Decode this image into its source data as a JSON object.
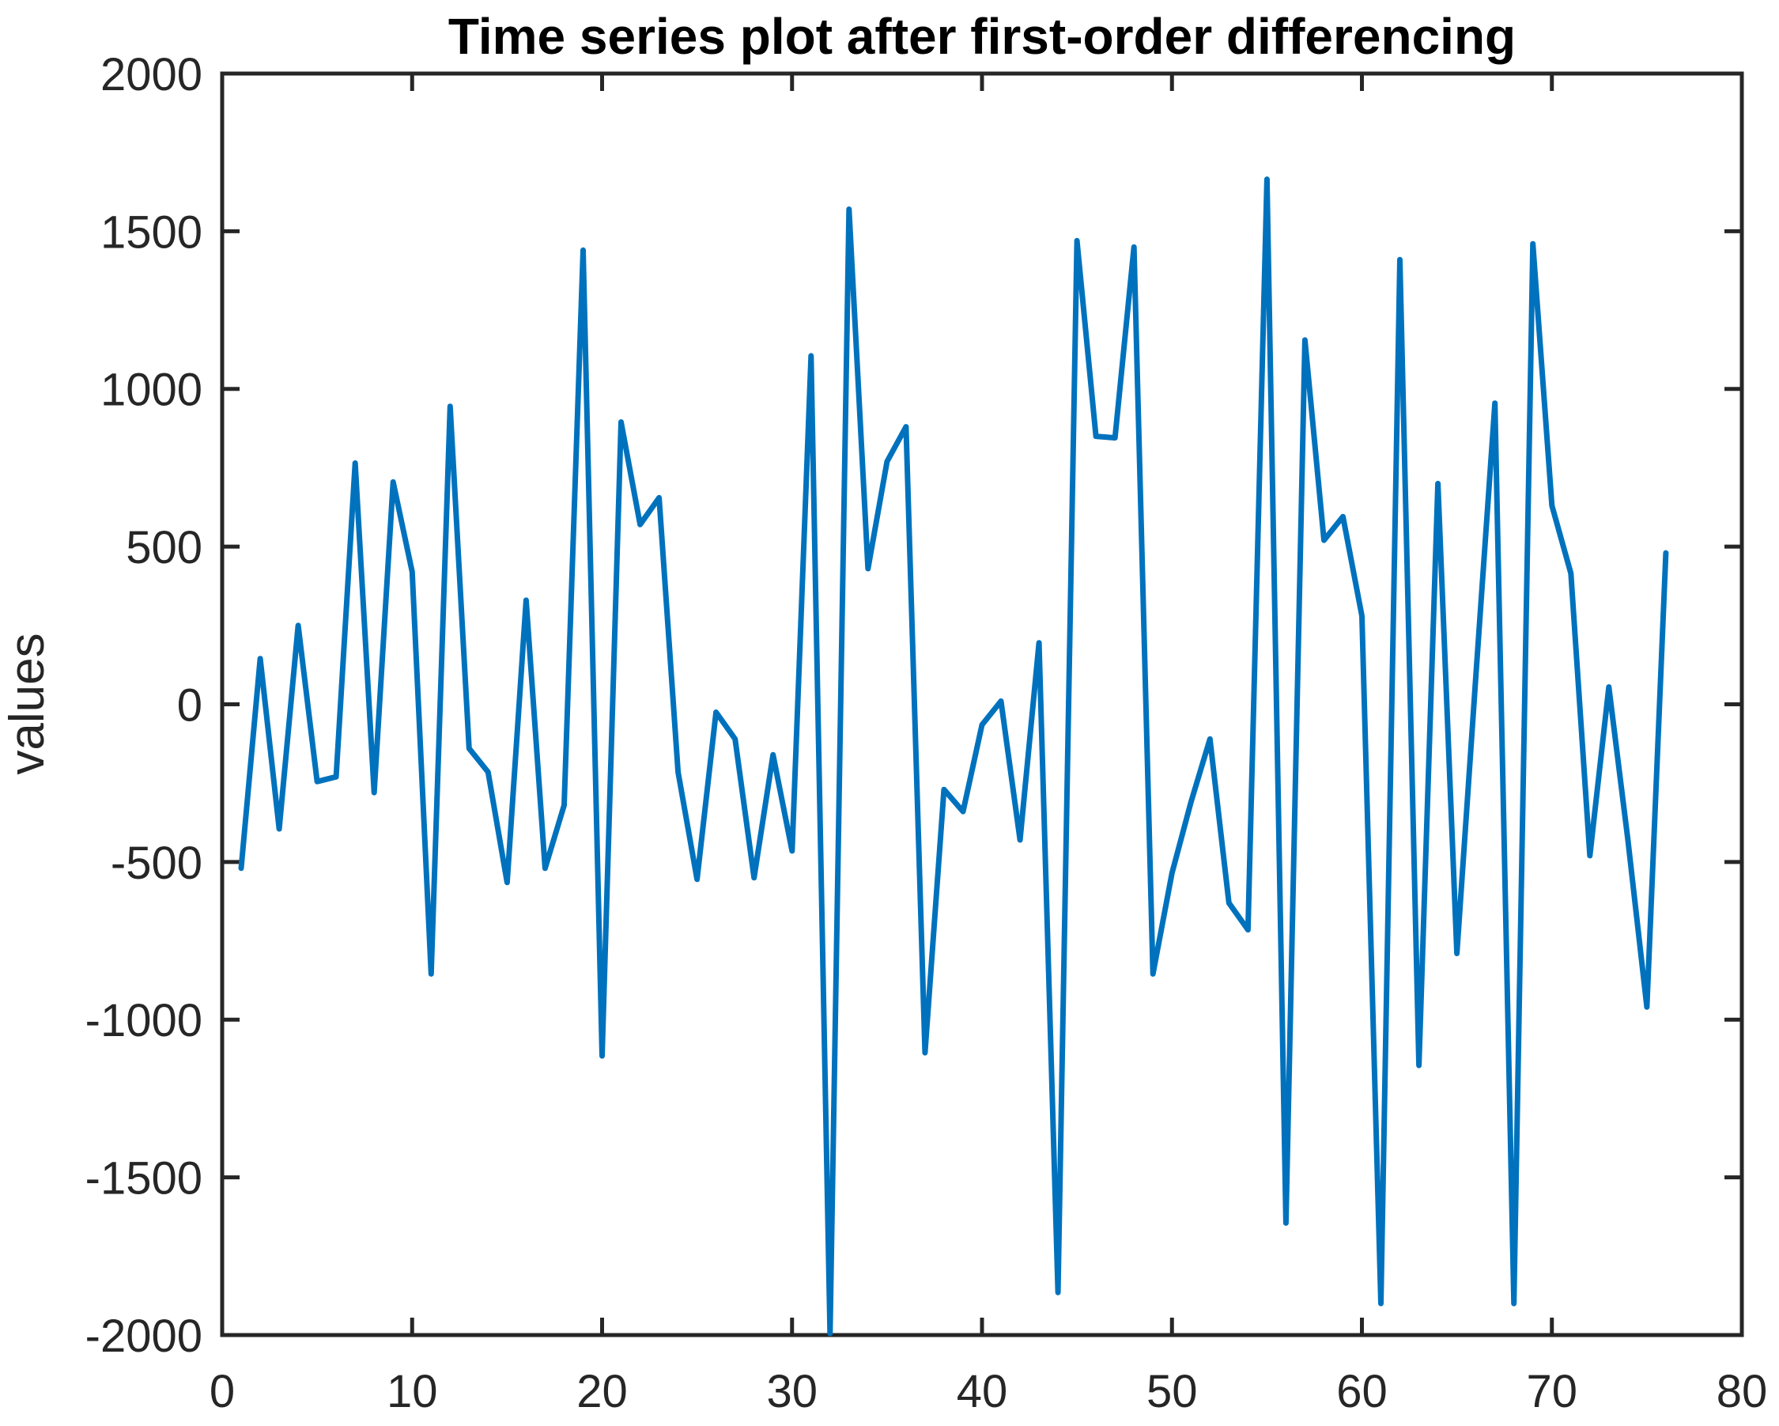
{
  "chart_data": {
    "type": "line",
    "title": "Time series plot after first-order differencing",
    "xlabel": "",
    "ylabel": "values",
    "x": [
      1,
      2,
      3,
      4,
      5,
      6,
      7,
      8,
      9,
      10,
      11,
      12,
      13,
      14,
      15,
      16,
      17,
      18,
      19,
      20,
      21,
      22,
      23,
      24,
      25,
      26,
      27,
      28,
      29,
      30,
      31,
      32,
      33,
      34,
      35,
      36,
      37,
      38,
      39,
      40,
      41,
      42,
      43,
      44,
      45,
      46,
      47,
      48,
      49,
      50,
      51,
      52,
      53,
      54,
      55,
      56,
      57,
      58,
      59,
      60,
      61,
      62,
      63,
      64,
      65,
      66,
      67,
      68,
      69,
      70,
      71,
      72,
      73,
      74,
      75,
      76
    ],
    "values": [
      -520,
      145,
      -395,
      250,
      -245,
      -230,
      765,
      -280,
      705,
      420,
      -855,
      945,
      -140,
      -215,
      -565,
      330,
      -520,
      -320,
      1440,
      -1115,
      895,
      570,
      655,
      -215,
      -555,
      -25,
      -110,
      -550,
      -160,
      -465,
      1105,
      -1995,
      1570,
      430,
      770,
      880,
      -1105,
      -270,
      -340,
      -65,
      10,
      -430,
      195,
      -1865,
      1470,
      850,
      845,
      1450,
      -855,
      -535,
      -310,
      -110,
      -630,
      -715,
      1665,
      -1645,
      1155,
      520,
      595,
      280,
      -1900,
      1410,
      -1145,
      700,
      -790,
      90,
      955,
      -1900,
      1460,
      630,
      415,
      -480,
      55,
      -430,
      -960,
      480
    ],
    "xlim": [
      0,
      80
    ],
    "ylim": [
      -2000,
      2000
    ],
    "xticks": [
      0,
      10,
      20,
      30,
      40,
      50,
      60,
      70,
      80
    ],
    "yticks": [
      -2000,
      -1500,
      -1000,
      -500,
      0,
      500,
      1000,
      1500,
      2000
    ],
    "grid": false,
    "legend": null,
    "line_color": "#0072BD",
    "axis_color": "#262626",
    "background": "#FFFFFF"
  }
}
